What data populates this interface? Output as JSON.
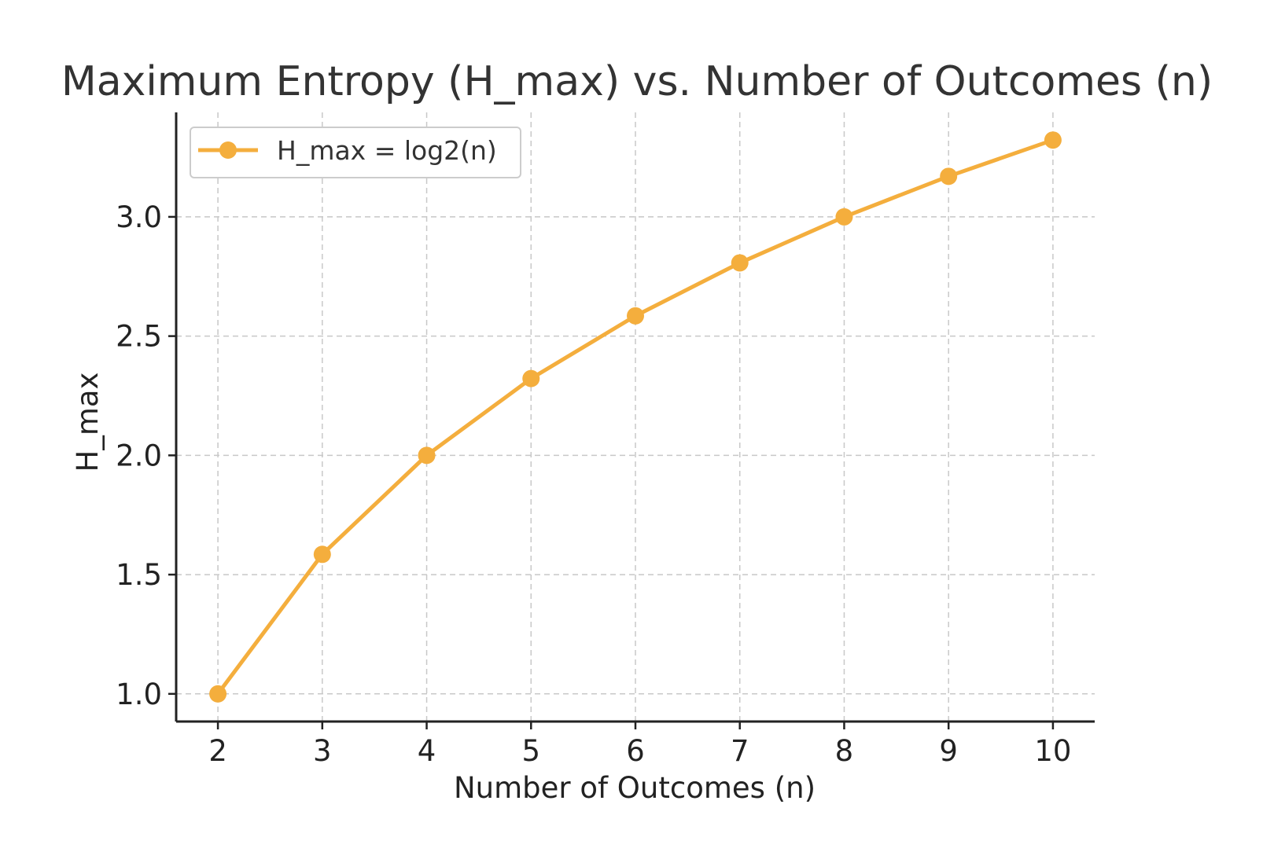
{
  "chart_data": {
    "type": "line",
    "title": "Maximum Entropy (H_max) vs. Number of Outcomes (n)",
    "xlabel": "Number of Outcomes (n)",
    "ylabel": "H_max",
    "x": [
      2,
      3,
      4,
      5,
      6,
      7,
      8,
      9,
      10
    ],
    "series": [
      {
        "name": "H_max = log2(n)",
        "values": [
          1.0,
          1.585,
          2.0,
          2.322,
          2.585,
          2.807,
          3.0,
          3.17,
          3.322
        ],
        "color": "#f4ae3d",
        "marker": "circle"
      }
    ],
    "xticks": [
      "2",
      "3",
      "4",
      "5",
      "6",
      "7",
      "8",
      "9",
      "10"
    ],
    "yticks": [
      "1.0",
      "1.5",
      "2.0",
      "2.5",
      "3.0"
    ],
    "xlim": [
      1.6,
      10.4
    ],
    "ylim": [
      0.884,
      3.438
    ],
    "grid": true,
    "legend_position": "top-left"
  }
}
